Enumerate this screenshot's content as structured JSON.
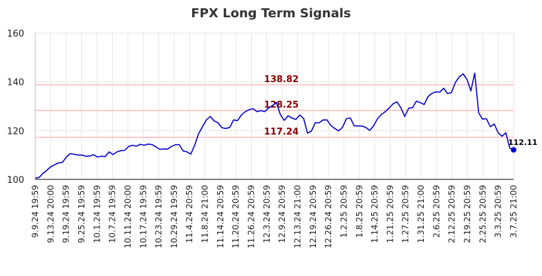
{
  "chart_data": {
    "type": "line",
    "title": "FPX Long Term Signals",
    "xlabel": "",
    "ylabel": "",
    "ylim": [
      100,
      160
    ],
    "yticks": [
      "100",
      "120",
      "140",
      "160"
    ],
    "grid": true,
    "x_tick_labels": [
      "9.9.24 19:59",
      "9.13.24 20:00",
      "9.19.24 19:59",
      "9.25.24 19:59",
      "10.1.24 19:59",
      "10.7.24 19:59",
      "10.11.24 20:00",
      "10.17.24 19:59",
      "10.23.24 19:59",
      "10.29.24 19:59",
      "11.4.24 20:59",
      "11.8.24 21:00",
      "11.14.24 20:59",
      "11.20.24 20:59",
      "11.26.24 20:59",
      "12.3.24 20:59",
      "12.9.24 20:59",
      "12.13.24 21:00",
      "12.19.24 20:59",
      "12.26.24 20:59",
      "1.2.25 20:59",
      "1.8.25 20:59",
      "1.14.25 20:59",
      "1.21.25 20:59",
      "1.27.25 20:59",
      "1.31.25 21:00",
      "2.6.25 20:59",
      "2.12.25 20:59",
      "2.19.25 20:59",
      "2.25.25 20:59",
      "3.3.25 20:59",
      "3.7.25 21:00"
    ],
    "levels": [
      {
        "value": 138.82,
        "label": "138.82"
      },
      {
        "value": 128.25,
        "label": "128.25"
      },
      {
        "value": 117.24,
        "label": "117.24"
      }
    ],
    "series": [
      {
        "values": [
          100.5,
          100.8,
          102.5,
          103.8,
          105.2,
          106.0,
          106.8,
          107.0,
          109.2,
          110.6,
          110.3,
          110.0,
          110.0,
          109.5,
          109.6,
          110.1,
          109.2,
          109.5,
          109.4,
          111.3,
          110.2,
          111.3,
          111.8,
          111.9,
          113.5,
          114.0,
          113.6,
          114.4,
          114.0,
          114.5,
          114.3,
          113.4,
          112.3,
          112.5,
          112.4,
          113.5,
          114.2,
          114.3,
          111.7,
          111.3,
          110.4,
          114.1,
          118.8,
          121.6,
          124.4,
          125.8,
          124.0,
          123.2,
          121.2,
          120.9,
          121.3,
          124.4,
          124.1,
          126.4,
          127.8,
          128.6,
          129.0,
          127.8,
          128.2,
          127.8,
          129.3,
          130.3,
          131.5,
          126.7,
          124.2,
          126.1,
          125.2,
          124.6,
          126.4,
          125.0,
          119.0,
          119.8,
          123.3,
          123.2,
          124.4,
          124.4,
          122.1,
          120.9,
          119.9,
          121.4,
          124.9,
          125.2,
          122.0,
          121.9,
          121.9,
          121.3,
          120.1,
          122.0,
          124.9,
          126.6,
          127.8,
          129.3,
          131.0,
          131.8,
          129.4,
          125.8,
          129.2,
          129.4,
          132.1,
          131.5,
          130.7,
          134.0,
          135.3,
          135.9,
          135.8,
          137.4,
          135.2,
          135.6,
          139.7,
          142.0,
          143.3,
          141.0,
          136.3,
          143.6,
          127.3,
          124.7,
          124.9,
          121.6,
          122.7,
          119.2,
          117.7,
          119.1,
          112.8,
          112.11
        ]
      }
    ],
    "last_value": {
      "value": 112.11,
      "label": "112.11"
    },
    "colors": {
      "line": "#0000cc",
      "level_line": "#ffbbbb",
      "level_label": "#8b0000",
      "marker": "#0000cc",
      "grid": "#e6e6e6"
    }
  }
}
